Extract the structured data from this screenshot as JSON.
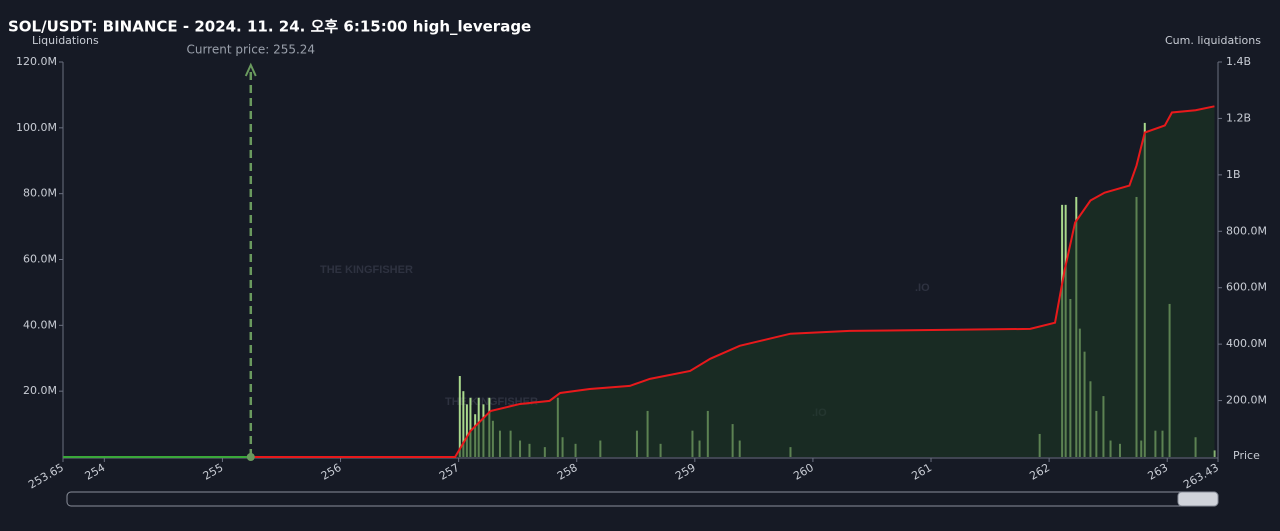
{
  "chart_data": {
    "type": "bar",
    "title": "SOL/USDT: BINANCE - 2024. 11. 24. 오후 6:15:00 high_leverage",
    "y_label": "Liquidations",
    "y2_label": "Cum. liquidations",
    "x_label": "Price",
    "watermark": "THE KINGFISHER",
    "watermark_suffix": ".IO",
    "current_price": 255.24,
    "current_price_label": "Current price: 255.24",
    "current_price_color": "#6a9a5e",
    "xlim": [
      253.65,
      263.43
    ],
    "xticks": [
      253.65,
      254,
      255,
      256,
      257,
      258,
      259,
      260,
      261,
      262,
      263,
      263.43
    ],
    "ylim": [
      0,
      120000000
    ],
    "yticks": [
      {
        "value": 20000000,
        "label": "20.0M"
      },
      {
        "value": 40000000,
        "label": "40.0M"
      },
      {
        "value": 60000000,
        "label": "60.0M"
      },
      {
        "value": 80000000,
        "label": "80.0M"
      },
      {
        "value": 100000000,
        "label": "100.0M"
      },
      {
        "value": 120000000,
        "label": "120.0M"
      }
    ],
    "y2lim": [
      0,
      1400000000
    ],
    "y2ticks": [
      {
        "value": 200000000,
        "label": "200.0M"
      },
      {
        "value": 400000000,
        "label": "400.0M"
      },
      {
        "value": 600000000,
        "label": "600.0M"
      },
      {
        "value": 800000000,
        "label": "800.0M"
      },
      {
        "value": 1000000000,
        "label": "1B"
      },
      {
        "value": 1200000000,
        "label": "1.2B"
      },
      {
        "value": 1400000000,
        "label": "1.4B"
      }
    ],
    "series": [
      {
        "type": "bar",
        "color": "#a9d98c",
        "x": [
          257.01,
          257.04,
          257.07,
          257.1,
          257.14,
          257.17,
          257.21,
          257.26,
          257.29,
          257.35,
          257.44,
          257.52,
          257.6,
          257.73,
          257.84,
          257.88,
          257.99,
          258.2,
          258.51,
          258.6,
          258.71,
          258.98,
          259.04,
          259.11,
          259.32,
          259.38,
          259.81,
          261.92,
          262.11,
          262.14,
          262.18,
          262.23,
          262.26,
          262.3,
          262.35,
          262.4,
          262.46,
          262.52,
          262.6,
          262.74,
          262.78,
          262.81,
          262.9,
          262.96,
          263.02,
          263.24,
          263.4
        ],
        "values": [
          24600000,
          20000000,
          16000000,
          18000000,
          13000000,
          18000000,
          16000000,
          18000000,
          11000000,
          8000000,
          8000000,
          5000000,
          4000000,
          3000000,
          18000000,
          6000000,
          4000000,
          5000000,
          8000000,
          14000000,
          4000000,
          8000000,
          5000000,
          14000000,
          10000000,
          5000000,
          3000000,
          7000000,
          76600000,
          76600000,
          48000000,
          79000000,
          39000000,
          32000000,
          23000000,
          14000000,
          18500000,
          5000000,
          4000000,
          79000000,
          5000000,
          101500000,
          8000000,
          8000000,
          46500000,
          6000000,
          2000000
        ]
      },
      {
        "type": "line",
        "axis": "y2",
        "color": "#e8191b",
        "color_before_current": "#3aa83a",
        "x": [
          253.65,
          255.24,
          256.97,
          257.1,
          257.27,
          257.52,
          257.77,
          257.86,
          258.11,
          258.45,
          258.62,
          258.96,
          259.13,
          259.38,
          259.81,
          260.31,
          261.84,
          262.05,
          262.13,
          262.22,
          262.35,
          262.47,
          262.68,
          262.74,
          262.81,
          262.98,
          263.04,
          263.24,
          263.4
        ],
        "values": [
          0,
          0,
          0,
          92000000,
          163000000,
          188000000,
          199000000,
          227000000,
          241000000,
          252000000,
          277000000,
          305000000,
          348000000,
          394000000,
          437000000,
          447000000,
          454000000,
          476000000,
          660000000,
          831000000,
          909000000,
          937000000,
          962000000,
          1033000000,
          1150000000,
          1175000000,
          1221000000,
          1229000000,
          1243000000
        ]
      }
    ]
  }
}
